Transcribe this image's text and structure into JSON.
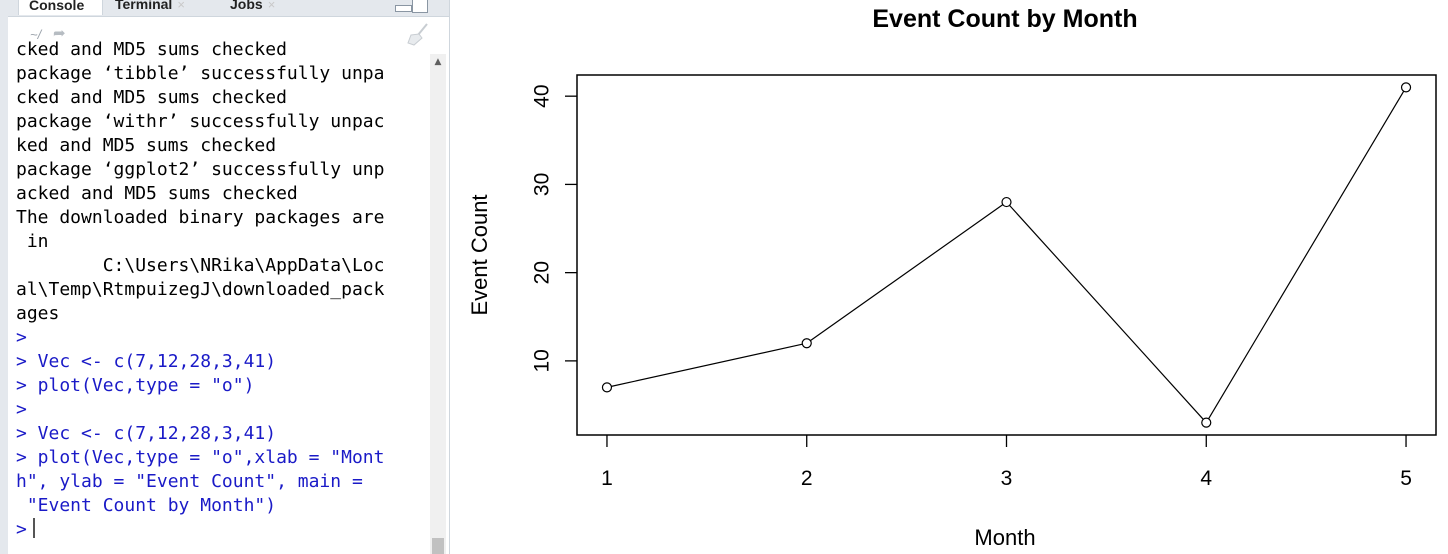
{
  "console": {
    "tabs": [
      {
        "label": "Console",
        "active": true
      },
      {
        "label": "Terminal",
        "close": "×",
        "active": false
      },
      {
        "label": "Jobs",
        "close": "×",
        "active": false
      }
    ],
    "path": "~/",
    "lines": [
      {
        "text": "cked and MD5 sums checked",
        "kind": "output"
      },
      {
        "text": "package ‘tibble’ successfully unpa",
        "kind": "output"
      },
      {
        "text": "cked and MD5 sums checked",
        "kind": "output"
      },
      {
        "text": "package ‘withr’ successfully unpac",
        "kind": "output"
      },
      {
        "text": "ked and MD5 sums checked",
        "kind": "output"
      },
      {
        "text": "package ‘ggplot2’ successfully unp",
        "kind": "output"
      },
      {
        "text": "acked and MD5 sums checked",
        "kind": "output"
      },
      {
        "text": "",
        "kind": "output"
      },
      {
        "text": "The downloaded binary packages are",
        "kind": "output"
      },
      {
        "text": " in",
        "kind": "output"
      },
      {
        "text": "        C:\\Users\\NRika\\AppData\\Loc",
        "kind": "output"
      },
      {
        "text": "al\\Temp\\RtmpuizegJ\\downloaded_pack",
        "kind": "output"
      },
      {
        "text": "ages",
        "kind": "output"
      },
      {
        "text": ">",
        "kind": "cmd"
      },
      {
        "text": "> Vec <- c(7,12,28,3,41)",
        "kind": "cmd"
      },
      {
        "text": "> plot(Vec,type = \"o\")",
        "kind": "cmd"
      },
      {
        "text": ">",
        "kind": "cmd"
      },
      {
        "text": "> Vec <- c(7,12,28,3,41)",
        "kind": "cmd"
      },
      {
        "text": "> plot(Vec,type = \"o\",xlab = \"Mont",
        "kind": "cmd"
      },
      {
        "text": "h\", ylab = \"Event Count\", main =",
        "kind": "cmd"
      },
      {
        "text": " \"Event Count by Month\")",
        "kind": "cmd"
      },
      {
        "text": ">",
        "kind": "cmd"
      }
    ],
    "colors": {
      "command": "#1a1ac7",
      "output": "#000000"
    }
  },
  "chart_data": {
    "type": "line",
    "title": "Event Count by Month",
    "xlabel": "Month",
    "ylabel": "Event Count",
    "x": [
      1,
      2,
      3,
      4,
      5
    ],
    "y": [
      7,
      12,
      28,
      3,
      41
    ],
    "xticks": [
      1,
      2,
      3,
      4,
      5
    ],
    "yticks": [
      10,
      20,
      30,
      40
    ],
    "xlim": [
      0.85,
      5.15
    ],
    "ylim": [
      1.6,
      42.4
    ],
    "marker": "open-circle",
    "grid": false,
    "legend": "none"
  }
}
